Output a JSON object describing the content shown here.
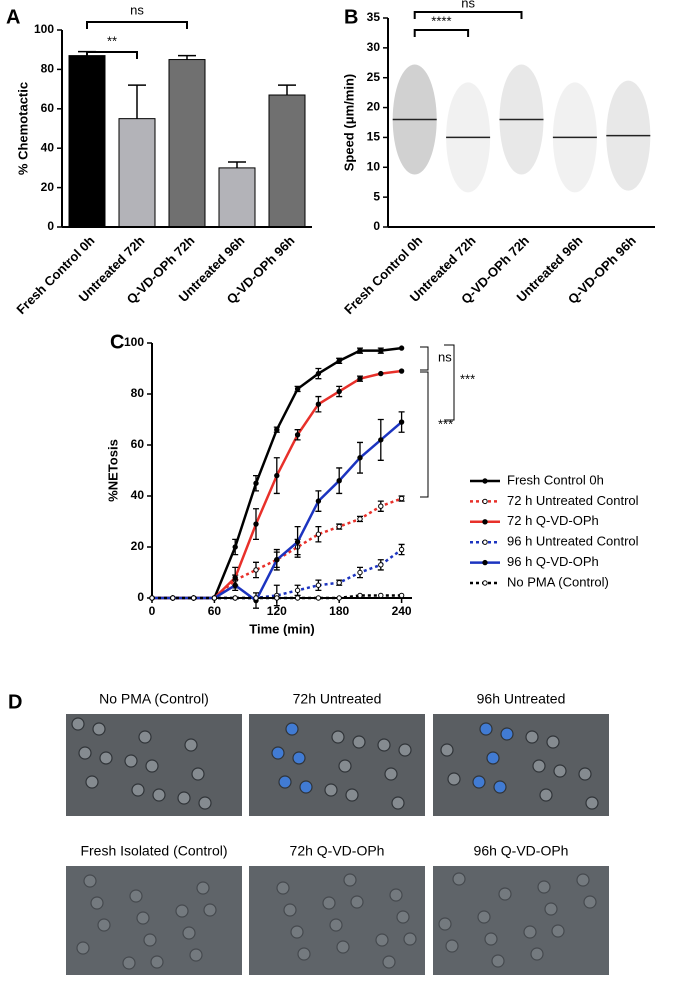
{
  "chart_data": [
    {
      "type": "bar",
      "panel_label": "A",
      "ylabel": "% Chemotactic",
      "categories": [
        "Fresh Control 0h",
        "Untreated 72h",
        "Q-VD-OPh 72h",
        "Untreated 96h",
        "Q-VD-OPh 96h"
      ],
      "values": [
        87,
        55,
        85,
        30,
        67
      ],
      "errors": [
        2,
        17,
        2,
        3,
        5
      ],
      "colors": [
        "#000000",
        "#b3b3b8",
        "#707070",
        "#b3b3b8",
        "#707070"
      ],
      "ylim": [
        0,
        100
      ],
      "yticks": [
        0,
        20,
        40,
        60,
        80,
        100
      ],
      "annotations": [
        "**",
        "ns"
      ]
    },
    {
      "type": "dot_plot",
      "panel_label": "B",
      "ylabel": "Speed (μm/min)",
      "categories": [
        "Fresh Control 0h",
        "Untreated 72h",
        "Q-VD-OPh 72h",
        "Untreated 96h",
        "Q-VD-OPh 96h"
      ],
      "values": [
        18,
        15,
        18,
        15,
        15.3
      ],
      "colors": [
        "#000000",
        "#b3b3b3",
        "#808080",
        "#b3b3b3",
        "#808080"
      ],
      "ylim": [
        0,
        35
      ],
      "yticks": [
        0,
        5,
        10,
        15,
        20,
        25,
        30,
        35
      ],
      "annotations": [
        "****",
        "ns"
      ]
    },
    {
      "type": "line",
      "panel_label": "C",
      "ylabel": "%NETosis",
      "xlabel": "Time (min)",
      "x": [
        0,
        20,
        40,
        60,
        80,
        100,
        120,
        140,
        160,
        180,
        200,
        220,
        240
      ],
      "xlim": [
        0,
        250
      ],
      "xticks": [
        0,
        60,
        120,
        180,
        240
      ],
      "ylim": [
        0,
        100
      ],
      "yticks": [
        0,
        20,
        40,
        60,
        80,
        100
      ],
      "series": [
        {
          "name": "Fresh Control 0h",
          "color": "#000000",
          "dashed": false,
          "values": [
            0,
            0,
            0,
            0,
            20,
            45,
            66,
            82,
            88,
            93,
            97,
            97,
            98
          ],
          "errors": [
            0,
            0,
            0,
            0,
            3,
            3,
            1,
            1,
            2,
            1,
            1,
            1,
            0
          ]
        },
        {
          "name": "72 h Untreated Control",
          "color": "#e8302a",
          "dashed": true,
          "values": [
            0,
            0,
            0,
            0,
            7,
            11,
            15,
            20,
            25,
            28,
            31,
            36,
            39
          ],
          "errors": [
            0,
            0,
            0,
            0,
            2,
            3,
            3,
            3,
            3,
            1,
            1,
            2,
            1
          ]
        },
        {
          "name": "72 h Q-VD-OPh",
          "color": "#e8302a",
          "dashed": false,
          "values": [
            0,
            0,
            0,
            0,
            8,
            29,
            48,
            64,
            76,
            81,
            86,
            88,
            89
          ],
          "errors": [
            0,
            0,
            0,
            0,
            4,
            6,
            7,
            2,
            3,
            2,
            1,
            0,
            0
          ]
        },
        {
          "name": "96 h Untreated Control",
          "color": "#1c34c0",
          "dashed": true,
          "values": [
            0,
            0,
            0,
            0,
            0,
            0,
            1,
            3,
            5,
            6,
            10,
            13,
            19
          ],
          "errors": [
            0,
            0,
            0,
            0,
            0,
            0,
            4,
            2,
            2,
            1,
            2,
            2,
            2
          ]
        },
        {
          "name": "96 h Q-VD-OPh",
          "color": "#1c34c0",
          "dashed": false,
          "values": [
            0,
            0,
            0,
            0,
            5,
            -1,
            15,
            22,
            38,
            46,
            55,
            62,
            69
          ],
          "errors": [
            0,
            0,
            0,
            0,
            2,
            3,
            4,
            6,
            4,
            5,
            6,
            8,
            4
          ]
        },
        {
          "name": "No PMA (Control)",
          "color": "#000000",
          "dashed": true,
          "values": [
            0,
            0,
            0,
            0,
            0,
            0,
            0,
            0,
            0,
            0,
            1,
            1,
            1
          ],
          "errors": [
            0,
            0,
            0,
            0,
            0,
            0,
            0,
            0,
            0,
            0,
            0,
            0,
            0
          ]
        }
      ],
      "annotations": [
        "ns",
        "***",
        "***"
      ]
    }
  ],
  "images": {
    "panel_label": "D",
    "titles": [
      "No PMA (Control)",
      "72h Untreated",
      "96h Untreated",
      "Fresh Isolated (Control)",
      "72h Q-VD-OPh",
      "96h Q-VD-OPh"
    ]
  }
}
